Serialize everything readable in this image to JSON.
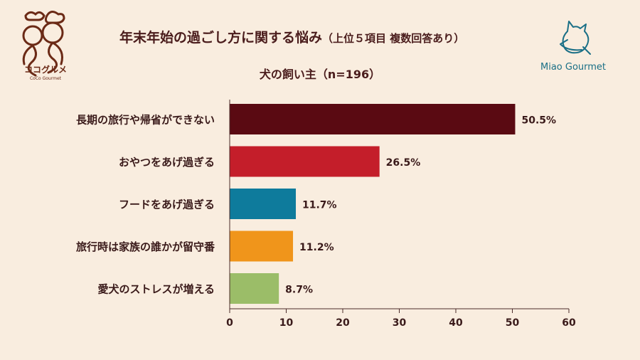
{
  "title": "年末年始の過ごし方に関する悩み",
  "title_note": "（上位５項目 複数回答あり）",
  "subtitle": "犬の飼い主（n=196）",
  "brand_left": {
    "text": "ココグルメ",
    "sub": "CoCo Gourmet"
  },
  "brand_right": {
    "text": "Miao Gourmet"
  },
  "chart_data": {
    "type": "bar",
    "orientation": "horizontal",
    "categories": [
      "長期の旅行や帰省ができない",
      "おやつをあげ過ぎる",
      "フードをあげ過ぎる",
      "旅行時は家族の誰かが留守番",
      "愛犬のストレスが増える"
    ],
    "values": [
      50.5,
      26.5,
      11.7,
      11.2,
      8.7
    ],
    "value_labels": [
      "50.5%",
      "26.5%",
      "11.7%",
      "11.2%",
      "8.7%"
    ],
    "colors": [
      "#5a0a12",
      "#c41e2a",
      "#0e7b9c",
      "#f0951b",
      "#9bbd68"
    ],
    "xlim": [
      0,
      60
    ],
    "xticks": [
      0,
      10,
      20,
      30,
      40,
      50,
      60
    ],
    "grid": false
  }
}
